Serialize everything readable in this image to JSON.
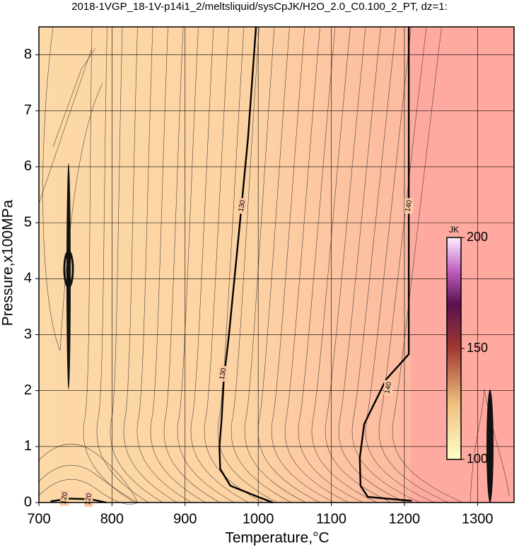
{
  "chart_data": {
    "type": "contour",
    "title": "2018-1VGP_18-1V-p14i1_2/meltsliquid/sysCpJK/H2O_2.0_C0.100_2_PT, dz=1:",
    "xlabel": "Temperature,°C",
    "ylabel": "Pressure,x100MPa",
    "xlim": [
      700,
      1350
    ],
    "ylim": [
      0,
      8.5
    ],
    "xticks": [
      700,
      800,
      900,
      1000,
      1100,
      1200,
      1300
    ],
    "yticks": [
      0,
      1,
      2,
      3,
      4,
      5,
      6,
      7,
      8
    ],
    "grid": true,
    "contours": [
      {
        "level": 120,
        "x": [
          716,
          740,
          770,
          792
        ],
        "y": [
          0.02,
          0.07,
          0.06,
          0.0
        ]
      },
      {
        "level": 130,
        "x": [
          1020,
          1000,
          962,
          948,
          947,
          950,
          953,
          960,
          975,
          986,
          997
        ],
        "y": [
          0,
          0.1,
          0.3,
          0.6,
          1.0,
          1.5,
          2.2,
          3.0,
          5.0,
          6.5,
          8.5
        ]
      },
      {
        "level": 140,
        "x": [
          1210,
          1150,
          1140,
          1139,
          1145,
          1175,
          1206,
          1206
        ],
        "y": [
          0.03,
          0.1,
          0.3,
          0.8,
          1.4,
          2.2,
          2.65,
          8.5
        ]
      }
    ],
    "colorbar": {
      "label": "JK",
      "lim": [
        100,
        200
      ],
      "ticks": [
        100,
        150,
        200
      ]
    }
  }
}
